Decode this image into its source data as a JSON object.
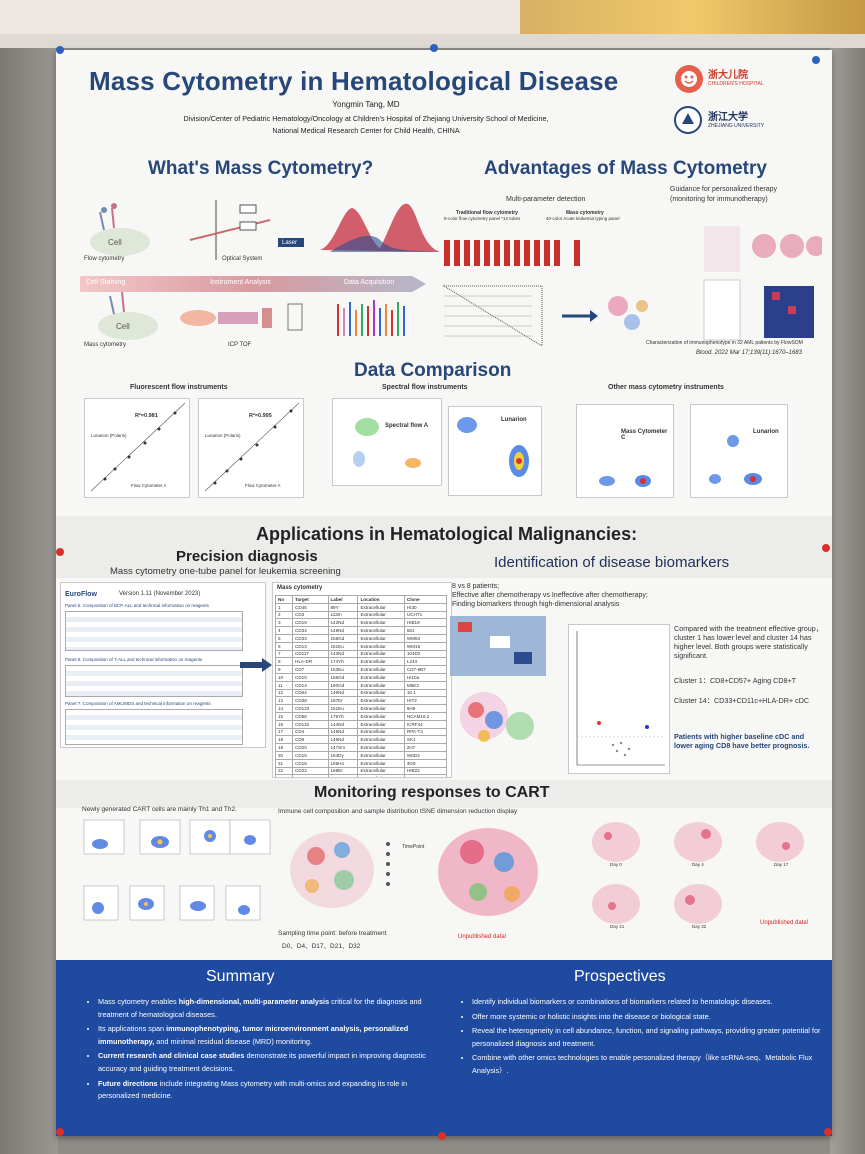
{
  "poster": {
    "title": "Mass Cytometry in Hematological Disease",
    "author": "Yongmin Tang, MD",
    "affiliation_line1": "Division/Center of Pediatric Hematology/Oncology at Children's Hospital of Zhejiang University School of Medicine,",
    "affiliation_line2": "National Medical Research Center for Child Health, CHINA",
    "logo1_name": "浙大儿院",
    "logo1_sub": "CHILDREN'S HOSPITAL",
    "logo2_name": "浙江大学",
    "logo2_sub": "ZHEJIANG UNIVERSITY"
  },
  "what": {
    "heading": "What's Mass Cytometry?",
    "cell": "Cell",
    "flow_cytometry": "Flow cytometry",
    "optical_system": "Optical System",
    "laser": "Laser",
    "bar_cell_staining": "Cell Staining",
    "bar_instrument": "Instrument Analysis",
    "bar_acquisition": "Data Acquisition",
    "mass_cytometry": "Mass cytometry",
    "icp_tof": "ICP TOF"
  },
  "advantages": {
    "heading": "Advantages of Mass Cytometry",
    "multi_param": "Multi-parameter detection",
    "traditional": "Traditional flow cytometry",
    "traditional_sub": "8-color flow cytometry panel *12 tubes",
    "mass": "Mass cytometry",
    "mass_sub": "40-color Acute leukemia typing panel",
    "guidance": "Guidance for personalized therapy",
    "guidance_sub": "(monitoring for immunotherapy)",
    "caption": "Characterization of immunophenotype in 32 AML patients by FlowSOM",
    "citation": "Blood. 2022 Mar 17;139(11):1670–1683"
  },
  "comparison": {
    "heading": "Data Comparison",
    "col1": "Fluorescent flow instruments",
    "col2": "Spectral flow instruments",
    "col3": "Other mass cytometry instruments",
    "r1": "R²=0.981",
    "r2": "R²=0.995",
    "lunarion_polaris": "Lunarion (Polaris)",
    "flow_a": "Flow Cytometer A",
    "spectral_a": "Spectral flow A",
    "lunarion": "Lunarion",
    "mass_c": "Mass Cytometer C"
  },
  "applications": {
    "heading": "Applications in Hematological Malignancies:",
    "precision": "Precision diagnosis",
    "precision_sub": "Mass cytometry one-tube panel for leukemia screening",
    "identification": "Identification of disease biomarkers",
    "euroflow": "EuroFlow",
    "euroflow_version": "Version 1.11 (November 2023)",
    "panel5": "Panel 5. Composition of BCP-ALL and technical information on reagents",
    "panel6": "Panel 6. Composition of T-ALL and technical information on reagents",
    "panel7": "Panel 7. Composition of AML/MDS and technical information on reagents",
    "mass_table_title": "Mass cytometry",
    "mass_table_headers": [
      "No",
      "Target",
      "Label",
      "Location",
      "Clone"
    ],
    "mass_table_rows": [
      [
        "1",
        "CD45",
        "89Y",
        "Extracellular",
        "HI30"
      ],
      [
        "2",
        "CD3",
        "113In",
        "Extracellular",
        "UCHT1"
      ],
      [
        "3",
        "CD19",
        "142Nd",
        "Extracellular",
        "HIB19"
      ],
      [
        "4",
        "CD34",
        "148Nd",
        "Extracellular",
        "581"
      ],
      [
        "5",
        "CD33",
        "158Gd",
        "Extracellular",
        "WM53"
      ],
      [
        "6",
        "CD13",
        "151Eu",
        "Extracellular",
        "WM15"
      ],
      [
        "7",
        "CD117",
        "143Nd",
        "Extracellular",
        "104D2"
      ],
      [
        "8",
        "HLA-DR",
        "174Yb",
        "Extracellular",
        "L243"
      ],
      [
        "9",
        "CD7",
        "153Eu",
        "Extracellular",
        "CD7-6B7"
      ],
      [
        "10",
        "CD10",
        "156Gd",
        "Extracellular",
        "HI10a"
      ],
      [
        "11",
        "CD14",
        "160Gd",
        "Extracellular",
        "M5E2"
      ],
      [
        "12",
        "CD64",
        "146Nd",
        "Extracellular",
        "10.1"
      ],
      [
        "13",
        "CD38",
        "167Er",
        "Extracellular",
        "HIT2"
      ],
      [
        "14",
        "CD123",
        "151Eu",
        "Extracellular",
        "6H6"
      ],
      [
        "15",
        "CD56",
        "176Yb",
        "Extracellular",
        "NCAM16.2"
      ],
      [
        "16",
        "CD11b",
        "144Nd",
        "Extracellular",
        "ICRF44"
      ],
      [
        "17",
        "CD4",
        "145Nd",
        "Extracellular",
        "RPA-T4"
      ],
      [
        "18",
        "CD8",
        "146Nd",
        "Extracellular",
        "SK1"
      ],
      [
        "19",
        "CD20",
        "147Sm",
        "Extracellular",
        "2H7"
      ],
      [
        "20",
        "CD15",
        "164Dy",
        "Extracellular",
        "W6D3"
      ],
      [
        "21",
        "CD16",
        "165Ho",
        "Extracellular",
        "3G8"
      ],
      [
        "22",
        "CD22",
        "168Er",
        "Extracellular",
        "HIB22"
      ],
      [
        "23",
        "CD24",
        "169Tm",
        "Extracellular",
        "ML5"
      ],
      [
        "24",
        "CD25",
        "149Sm",
        "Extracellular",
        "BC96"
      ],
      [
        "25",
        "CD36",
        "152Sm",
        "Extracellular",
        "5-271"
      ],
      [
        "26",
        "CD71",
        "175Lu",
        "Extracellular",
        "CY1G4"
      ],
      [
        "27",
        "CD99",
        "159Tb",
        "Extracellular",
        "3B2/TA8"
      ],
      [
        "28",
        "CD2",
        "161Dy",
        "Extracellular",
        "RPA-2.10"
      ],
      [
        "29",
        "CD5",
        "162Dy",
        "Extracellular",
        "UCHT2"
      ],
      [
        "30",
        "CD1a",
        "163Dy",
        "Extracellular",
        "HI149"
      ],
      [
        "31",
        "CD79a",
        "170Er",
        "Intracellular",
        "HM47"
      ],
      [
        "32",
        "cCD3",
        "171Yb",
        "Intracellular",
        "UCHT1"
      ],
      [
        "33",
        "MPO",
        "172Yb",
        "Intracellular",
        "MPO455"
      ],
      [
        "34",
        "TdT",
        "173Yb",
        "Intracellular",
        "E17-1519"
      ],
      [
        "35",
        "CD61",
        "209Bi",
        "Extracellular",
        "VI-PL2"
      ],
      [
        "36",
        "CD235a",
        "141Pr",
        "Extracellular",
        "HIR2"
      ],
      [
        "37",
        "CD58",
        "154Sm",
        "Extracellular",
        "TS2/9"
      ],
      [
        "38",
        "CD27",
        "155Gd",
        "Extracellular",
        "L128"
      ],
      [
        "39",
        "CD45RA",
        "166Er",
        "Extracellular",
        "HI100"
      ],
      [
        "40",
        "CD81",
        "150Nd",
        "Extracellular",
        "5A6"
      ]
    ],
    "biomarker_intro1": "8 vs 8 patients;",
    "biomarker_intro2": "Effective after chemotherapy  vs   Ineffective after chemotherapy;",
    "biomarker_intro3": "Finding biomarkers through high-dimensional analysis",
    "finding": "Compared with the treatment effective group，cluster 1 has lower level and cluster 14 has higher level. Both groups were statistically significant.",
    "cluster1": "Cluster 1：CD8+CD57+ Aging CD8+T",
    "cluster14": "Cluster 14：CD33+CD11c+HLA-DR+ cDC",
    "conclusion": "Patients with higher baseline cDC and lower aging CD8 have better prognosis."
  },
  "cart": {
    "heading": "Monitoring responses to CART",
    "left_caption": "Newly generated CART cells are mainly Th1 and Th2.",
    "mid_caption": "Immune cell composition and sample distribution tSNE dimension reduction display",
    "sampling": "Sampling time point: before treatment",
    "sampling_days": "D0、D4、D17、D21、D32",
    "unpublished": "Unpublished data!",
    "timepoint": "TimePoint",
    "day0": "Day 0",
    "day4": "Day 4",
    "day17": "Day 17",
    "day21": "Day 21",
    "day32": "Day 32"
  },
  "summary": {
    "heading": "Summary",
    "items": [
      [
        "Mass cytometry enables ",
        "high-dimensional, multi-parameter analysis",
        " critical for the diagnosis and treatment of hematological diseases."
      ],
      [
        "Its applications span ",
        "immunophenotyping, tumor microenvironment analysis, personalized immunotherapy,",
        " and minimal residual disease (MRD) monitoring."
      ],
      [
        "",
        "Current research and clinical case studies",
        " demonstrate its powerful impact in improving diagnostic accuracy and guiding treatment decisions."
      ],
      [
        "",
        "Future directions",
        " include integrating Mass cytometry with multi-omics and expanding its role in personalized medicine."
      ]
    ]
  },
  "prospectives": {
    "heading": "Prospectives",
    "items": [
      "Identify individual biomarkers or combinations of biomarkers related to hematologic diseases.",
      "Offer more systemic or holistic insights into the disease or biological state.",
      "Reveal the heterogeneity in cell abundance, function, and signaling pathways, providing greater potential for personalized diagnosis and treatment.",
      "Combine with other omics technologies to enable personalized therapy（like scRNA-seq、Metabolic Flux Analysis）."
    ]
  },
  "colors": {
    "title_blue": "#27477a",
    "summary_blue": "#1e4aa0",
    "accent_red": "#d22222"
  }
}
